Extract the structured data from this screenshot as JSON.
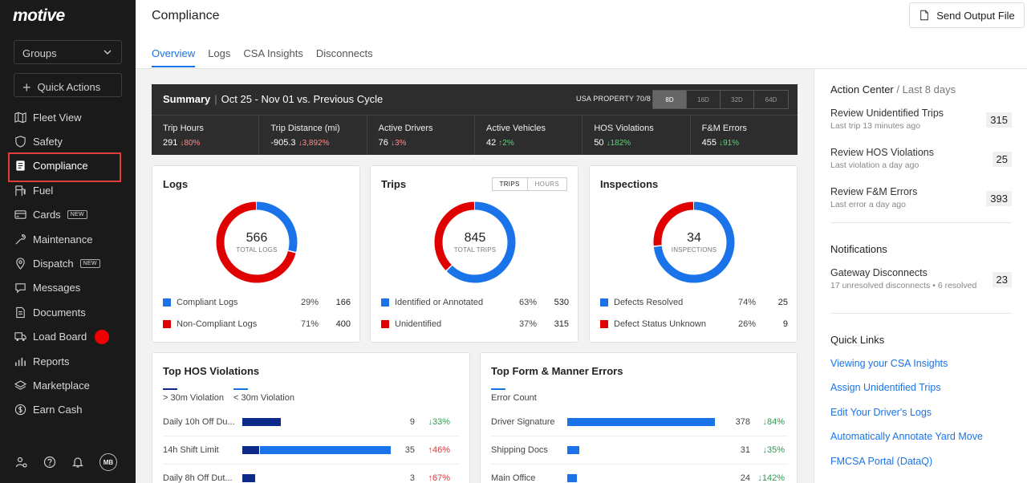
{
  "brand": {
    "logo": "motive"
  },
  "sidebar": {
    "groups_label": "Groups",
    "quick_actions_label": "Quick Actions",
    "items": [
      {
        "label": "Fleet View",
        "icon": "map-icon"
      },
      {
        "label": "Safety",
        "icon": "shield-icon"
      },
      {
        "label": "Compliance",
        "icon": "document-icon",
        "active": true
      },
      {
        "label": "Fuel",
        "icon": "fuel-icon"
      },
      {
        "label": "Cards",
        "icon": "card-icon",
        "badge": "NEW"
      },
      {
        "label": "Maintenance",
        "icon": "wrench-icon"
      },
      {
        "label": "Dispatch",
        "icon": "pin-icon",
        "badge": "NEW"
      },
      {
        "label": "Messages",
        "icon": "chat-icon"
      },
      {
        "label": "Documents",
        "icon": "file-icon"
      },
      {
        "label": "Load Board",
        "icon": "truck-icon",
        "dot": true
      },
      {
        "label": "Reports",
        "icon": "chart-icon"
      },
      {
        "label": "Marketplace",
        "icon": "layers-icon"
      },
      {
        "label": "Earn Cash",
        "icon": "dollar-icon"
      }
    ],
    "avatar": "MB"
  },
  "header": {
    "title": "Compliance",
    "send_button": "Send Output File",
    "tabs": [
      "Overview",
      "Logs",
      "CSA Insights",
      "Disconnects"
    ]
  },
  "summary": {
    "title": "Summary",
    "period": "Oct 25 - Nov 01 vs. Previous Cycle",
    "ruleset": "USA PROPERTY 70/8",
    "ranges": [
      "8D",
      "16D",
      "32D",
      "64D"
    ],
    "metrics": [
      {
        "label": "Trip Hours",
        "value": "291",
        "delta": "↓80%",
        "tone": "down-red"
      },
      {
        "label": "Trip Distance (mi)",
        "value": "-905.3",
        "delta": "↓3,892%",
        "tone": "down-red"
      },
      {
        "label": "Active Drivers",
        "value": "76",
        "delta": "↓3%",
        "tone": "down-red"
      },
      {
        "label": "Active Vehicles",
        "value": "42",
        "delta": "↑2%",
        "tone": "up-green"
      },
      {
        "label": "HOS Violations",
        "value": "50",
        "delta": "↓182%",
        "tone": "down-green"
      },
      {
        "label": "F&M Errors",
        "value": "455",
        "delta": "↓91%",
        "tone": "down-green"
      }
    ]
  },
  "logs": {
    "title": "Logs",
    "total": "566",
    "total_label": "TOTAL LOGS",
    "rows": [
      {
        "label": "Compliant Logs",
        "pct": "29%",
        "count": "166",
        "color": "#1a73e8"
      },
      {
        "label": "Non-Compliant Logs",
        "pct": "71%",
        "count": "400",
        "color": "#e00000"
      }
    ]
  },
  "trips": {
    "title": "Trips",
    "toggle": [
      "TRIPS",
      "HOURS"
    ],
    "total": "845",
    "total_label": "TOTAL TRIPS",
    "rows": [
      {
        "label": "Identified or Annotated",
        "pct": "63%",
        "count": "530",
        "color": "#1a73e8"
      },
      {
        "label": "Unidentified",
        "pct": "37%",
        "count": "315",
        "color": "#e00000"
      }
    ]
  },
  "inspections": {
    "title": "Inspections",
    "total": "34",
    "total_label": "INSPECTIONS",
    "rows": [
      {
        "label": "Defects Resolved",
        "pct": "74%",
        "count": "25",
        "color": "#1a73e8"
      },
      {
        "label": "Defect Status Unknown",
        "pct": "26%",
        "count": "9",
        "color": "#e00000"
      }
    ]
  },
  "hos": {
    "title": "Top HOS Violations",
    "legend": [
      "> 30m Violation",
      "< 30m Violation"
    ],
    "rows": [
      {
        "label": "Daily 10h Off Du...",
        "count": "9",
        "delta": "↓33%",
        "tone": "green",
        "a": 9,
        "b": 0
      },
      {
        "label": "14h Shift Limit",
        "count": "35",
        "delta": "↑46%",
        "tone": "red",
        "a": 4,
        "b": 31
      },
      {
        "label": "Daily 8h Off Dut...",
        "count": "3",
        "delta": "↑67%",
        "tone": "red",
        "a": 3,
        "b": 0
      }
    ],
    "max": 35
  },
  "fm": {
    "title": "Top Form & Manner Errors",
    "legend": [
      "Error Count"
    ],
    "rows": [
      {
        "label": "Driver Signature",
        "count": "378",
        "delta": "↓84%",
        "tone": "green",
        "v": 378
      },
      {
        "label": "Shipping Docs",
        "count": "31",
        "delta": "↓35%",
        "tone": "green",
        "v": 31
      },
      {
        "label": "Main Office",
        "count": "24",
        "delta": "↓142%",
        "tone": "green",
        "v": 24
      }
    ],
    "max": 378
  },
  "action_center": {
    "title": "Action Center",
    "subtitle": "/ Last 8 days",
    "items": [
      {
        "title": "Review Unidentified Trips",
        "sub": "Last trip 13 minutes ago",
        "count": "315"
      },
      {
        "title": "Review HOS Violations",
        "sub": "Last violation a day ago",
        "count": "25"
      },
      {
        "title": "Review F&M Errors",
        "sub": "Last error a day ago",
        "count": "393"
      }
    ]
  },
  "notifications": {
    "title": "Notifications",
    "items": [
      {
        "title": "Gateway Disconnects",
        "sub": "17 unresolved disconnects • 6 resolved",
        "count": "23"
      }
    ]
  },
  "quick_links": {
    "title": "Quick Links",
    "links": [
      "Viewing your CSA Insights",
      "Assign Unidentified Trips",
      "Edit Your Driver's Logs",
      "Automatically Annotate Yard Move",
      "FMCSA Portal (DataQ)"
    ]
  },
  "colors": {
    "blue": "#1a73e8",
    "navy": "#0d2a8a",
    "red": "#e00000"
  }
}
